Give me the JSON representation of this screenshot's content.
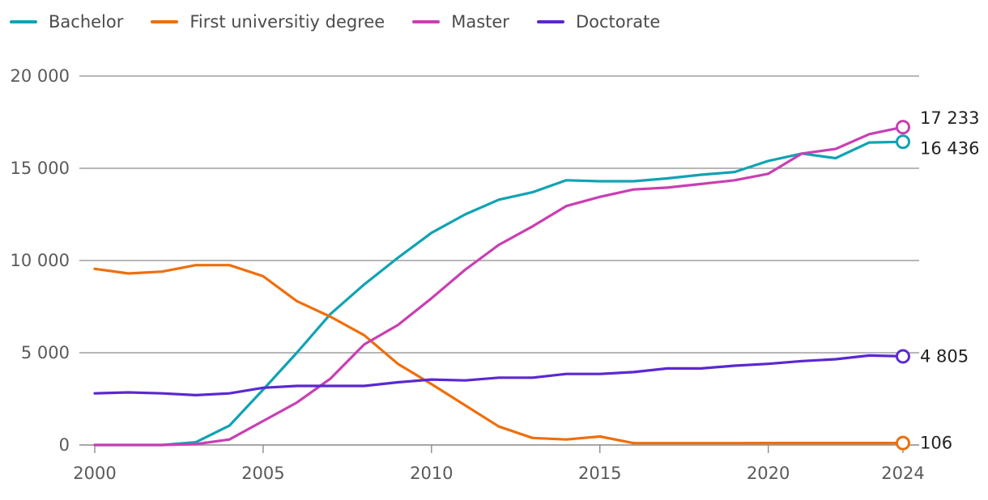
{
  "chart_data": {
    "type": "line",
    "title": "",
    "xlabel": "",
    "ylabel": "",
    "xlim": [
      2000,
      2024
    ],
    "ylim": [
      0,
      20000
    ],
    "x_ticks": [
      "2000",
      "2005",
      "2010",
      "2015",
      "2020",
      "2024"
    ],
    "y_ticks": [
      "0",
      "5 000",
      "10 000",
      "15 000",
      "20 000"
    ],
    "grid": "horizontal",
    "legend_position": "top-left",
    "x": [
      2000,
      2001,
      2002,
      2003,
      2004,
      2005,
      2006,
      2007,
      2008,
      2009,
      2010,
      2011,
      2012,
      2013,
      2014,
      2015,
      2016,
      2017,
      2018,
      2019,
      2020,
      2021,
      2022,
      2023,
      2024
    ],
    "series": [
      {
        "name": "Bachelor",
        "color": "#0fa3b4",
        "values": [
          0,
          0,
          0,
          150,
          1050,
          3000,
          5000,
          7100,
          8700,
          10150,
          11500,
          12500,
          13300,
          13700,
          14350,
          14300,
          14300,
          14450,
          14650,
          14800,
          15400,
          15800,
          15550,
          16400,
          16436
        ],
        "end_label": "16 436"
      },
      {
        "name": "First universitiy degree",
        "color": "#f06e0a",
        "values": [
          9550,
          9300,
          9400,
          9750,
          9750,
          9150,
          7800,
          6950,
          5950,
          4400,
          3300,
          2150,
          1000,
          380,
          300,
          460,
          100,
          100,
          100,
          100,
          106,
          106,
          106,
          106,
          106
        ],
        "end_label": "106"
      },
      {
        "name": "Master",
        "color": "#c93fb3",
        "values": [
          0,
          0,
          0,
          50,
          300,
          1300,
          2300,
          3600,
          5450,
          6500,
          7950,
          9500,
          10850,
          11850,
          12950,
          13450,
          13850,
          13950,
          14150,
          14350,
          14700,
          15800,
          16050,
          16850,
          17233
        ],
        "end_label": "17 233"
      },
      {
        "name": "Doctorate",
        "color": "#5a28d2",
        "values": [
          2800,
          2850,
          2800,
          2700,
          2800,
          3100,
          3200,
          3200,
          3200,
          3400,
          3550,
          3500,
          3650,
          3650,
          3850,
          3850,
          3950,
          4150,
          4150,
          4300,
          4400,
          4550,
          4650,
          4850,
          4805
        ],
        "end_label": "4 805"
      }
    ]
  }
}
